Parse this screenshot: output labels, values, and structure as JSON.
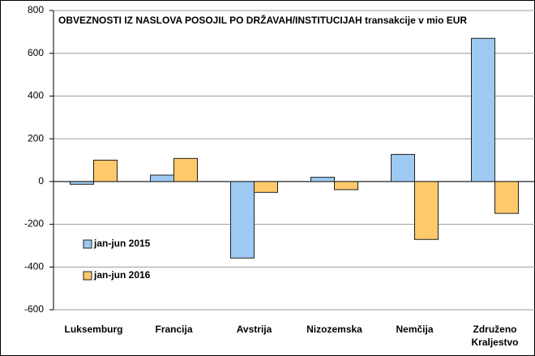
{
  "chart_data": {
    "type": "bar",
    "title": "OBVEZNOSTI IZ NASLOVA POSOJIL PO DRŽAVAH/INSTITUCIJAH transakcije v mio EUR",
    "categories": [
      "Luksemburg",
      "Francija",
      "Avstrija",
      "Nizozemska",
      "Nemčija",
      "Združeno Kraljestvo"
    ],
    "series": [
      {
        "name": "jan-jun 2015",
        "color": "#9dc9f2",
        "values": [
          -13,
          30,
          -358,
          20,
          127,
          670
        ]
      },
      {
        "name": "jan-jun 2016",
        "color": "#fdc96b",
        "values": [
          100,
          108,
          -51,
          -38,
          -271,
          -149
        ]
      }
    ],
    "ylim": [
      -600,
      800
    ],
    "yticks": [
      -600,
      -400,
      -200,
      0,
      200,
      400,
      600,
      800
    ],
    "grid": true
  }
}
